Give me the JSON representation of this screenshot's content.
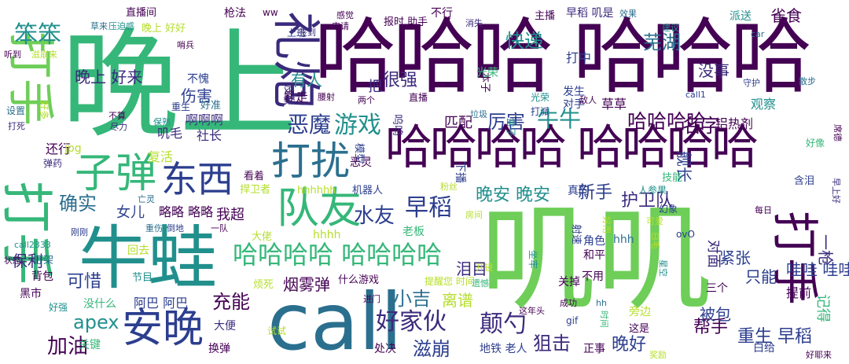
{
  "palette": {
    "background": "#ffffff",
    "dark_purple": "#440154",
    "indigo": "#3b2a7c",
    "navy": "#2c3e8e",
    "teal_blue": "#2b6f8e",
    "teal": "#21908d",
    "green": "#35b779",
    "bright_green": "#6ece58",
    "lime": "#b5de2b",
    "yellow": "#fde725"
  },
  "words": [
    {
      "text": "晚上",
      "color": "#35b779"
    },
    {
      "text": "哈哈哈 哈哈哈",
      "color": "#440154"
    },
    {
      "text": "叽叽",
      "color": "#6ece58"
    },
    {
      "text": "call",
      "color": "#2b6f8e"
    },
    {
      "text": "牛蛙",
      "color": "#21908d"
    },
    {
      "text": "打手",
      "color": "#6ece58"
    },
    {
      "text": "打手",
      "color": "#35b779"
    },
    {
      "text": "打手",
      "color": "#440154"
    },
    {
      "text": "哈哈哈哈 哈哈哈哈",
      "color": "#440154"
    },
    {
      "text": "礼炮",
      "color": "#3b2a7c"
    },
    {
      "text": "打扰",
      "color": "#2b6f8e"
    },
    {
      "text": "队友",
      "color": "#35b779"
    },
    {
      "text": "东西",
      "color": "#2c3e8e"
    },
    {
      "text": "子弹",
      "color": "#35b779"
    },
    {
      "text": "安晚",
      "color": "#2c3e8e"
    },
    {
      "text": "哈哈哈哈 哈哈哈哈",
      "color": "#35b779"
    },
    {
      "text": "笨笨",
      "color": "#21908d"
    },
    {
      "text": "游戏",
      "color": "#21908d"
    },
    {
      "text": "恶魔",
      "color": "#2c3e8e"
    },
    {
      "text": "厉害",
      "color": "#2c3e8e"
    },
    {
      "text": "牛牛",
      "color": "#21908d"
    },
    {
      "text": "哈哈哈哈",
      "color": "#440154"
    },
    {
      "text": "早稻",
      "color": "#2c3e8e"
    },
    {
      "text": "水友",
      "color": "#2c3e8e"
    },
    {
      "text": "晚安 晚安",
      "color": "#21908d"
    },
    {
      "text": "好家伙",
      "color": "#3b2a7c"
    },
    {
      "text": "颠勺",
      "color": "#3b2a7c"
    },
    {
      "text": "加油",
      "color": "#440154"
    },
    {
      "text": "确实",
      "color": "#2b6f8e"
    },
    {
      "text": "快递",
      "color": "#21908d"
    },
    {
      "text": "芜湖",
      "color": "#2b6f8e"
    },
    {
      "text": "名字",
      "color": "#440154"
    },
    {
      "text": "舰长",
      "color": "#2c3e8e"
    },
    {
      "text": "护卫队",
      "color": "#3b2a7c"
    },
    {
      "text": "新手",
      "color": "#2c3e8e"
    },
    {
      "text": "滋崩",
      "color": "#2c3e8e"
    },
    {
      "text": "狙击",
      "color": "#3b2a7c"
    },
    {
      "text": "晚好",
      "color": "#2c3e8e"
    },
    {
      "text": "帮手",
      "color": "#440154"
    },
    {
      "text": "重生 早稻",
      "color": "#2c3e8e"
    },
    {
      "text": "充能",
      "color": "#440154"
    },
    {
      "text": "小吉",
      "color": "#2b6f8e"
    },
    {
      "text": "泪目",
      "color": "#3b2a7c"
    },
    {
      "text": "离谱",
      "color": "#b5de2b"
    },
    {
      "text": "apex",
      "color": "#21908d"
    },
    {
      "text": "可惜",
      "color": "#2c3e8e"
    },
    {
      "text": "保利",
      "color": "#3b2a7c"
    },
    {
      "text": "晚上 好来",
      "color": "#3b2a7c"
    },
    {
      "text": "有人",
      "color": "#21908d"
    },
    {
      "text": "伤害",
      "color": "#2c3e8e"
    },
    {
      "text": "把",
      "color": "#3b2a7c"
    },
    {
      "text": "很强",
      "color": "#3b2a7c"
    },
    {
      "text": "打中",
      "color": "#2c3e8e"
    },
    {
      "text": "没事",
      "color": "#3b2a7c"
    },
    {
      "text": "雀食",
      "color": "#440154"
    },
    {
      "text": "哇哇 哇哇",
      "color": "#2c3e8e"
    },
    {
      "text": "只能",
      "color": "#2c3e8e"
    },
    {
      "text": "一枪",
      "color": "#3b2a7c"
    },
    {
      "text": "紧张",
      "color": "#2c3e8e"
    },
    {
      "text": "对面",
      "color": "#3b2a7c"
    },
    {
      "text": "被包",
      "color": "#2c3e8e"
    },
    {
      "text": "记得",
      "color": "#35b779"
    },
    {
      "text": "提前",
      "color": "#440154"
    },
    {
      "text": "烟雾弹",
      "color": "#440154"
    },
    {
      "text": "我超",
      "color": "#440154"
    },
    {
      "text": "女儿",
      "color": "#2c3e8e"
    },
    {
      "text": "略略 略略",
      "color": "#440154"
    },
    {
      "text": "阿巴 阿巴",
      "color": "#2c3e8e"
    },
    {
      "text": "社长",
      "color": "#3b2a7c"
    },
    {
      "text": "叽毛",
      "color": "#3b2a7c"
    },
    {
      "text": "复活",
      "color": "#b5de2b"
    },
    {
      "text": "还行",
      "color": "#440154"
    },
    {
      "text": "啊啊啊",
      "color": "#3b2a7c"
    },
    {
      "text": "暴走",
      "color": "#440154"
    },
    {
      "text": "不愧",
      "color": "#2c3e8e"
    },
    {
      "text": "观察",
      "color": "#21908d"
    },
    {
      "text": "铝热剂",
      "color": "#440154"
    },
    {
      "text": "草草",
      "color": "#440154"
    },
    {
      "text": "匹配",
      "color": "#440154"
    },
    {
      "text": "直播间",
      "color": "#440154"
    },
    {
      "text": "枪法",
      "color": "#440154"
    },
    {
      "text": "不行",
      "color": "#440154"
    },
    {
      "text": "早稻 叽是",
      "color": "#3b2a7c"
    },
    {
      "text": "派送",
      "color": "#21908d"
    },
    {
      "text": "主播",
      "color": "#440154"
    },
    {
      "text": "报时 助手",
      "color": "#440154"
    },
    {
      "text": "上班",
      "color": "#2c3e8e"
    },
    {
      "text": "ww",
      "color": "#440154"
    },
    {
      "text": "晚上 好好",
      "color": "#b5de2b"
    },
    {
      "text": "压迫感",
      "color": "#21908d"
    },
    {
      "text": "草来",
      "color": "#2b6f8e"
    },
    {
      "text": "签到",
      "color": "#3b2a7c"
    },
    {
      "text": "申请",
      "color": "#440154"
    },
    {
      "text": "消失",
      "color": "#3b2a7c"
    },
    {
      "text": "感觉",
      "color": "#440154"
    },
    {
      "text": "效果",
      "color": "#2b6f8e"
    },
    {
      "text": "建议",
      "color": "#21908d"
    },
    {
      "text": "car",
      "color": "#2b6f8e"
    },
    {
      "text": "守护",
      "color": "#2c3e8e"
    },
    {
      "text": "散步",
      "color": "#2b6f8e"
    },
    {
      "text": "发生",
      "color": "#2c3e8e"
    },
    {
      "text": "对手",
      "color": "#2c3e8e"
    },
    {
      "text": "光荣",
      "color": "#21908d"
    },
    {
      "text": "敌人",
      "color": "#440154"
    },
    {
      "text": "打派",
      "color": "#2c3e8e"
    },
    {
      "text": "直播",
      "color": "#440154"
    },
    {
      "text": "重生",
      "color": "#2c3e8e"
    },
    {
      "text": "好准",
      "color": "#2b6f8e"
    },
    {
      "text": "尽力",
      "color": "#3b2a7c"
    },
    {
      "text": "不算",
      "color": "#440154"
    },
    {
      "text": "保熟",
      "color": "#21908d"
    },
    {
      "text": "设置",
      "color": "#2b6f8e"
    },
    {
      "text": "好多",
      "color": "#b5de2b"
    },
    {
      "text": "听到",
      "color": "#440154"
    },
    {
      "text": "滋崩来",
      "color": "#b5de2b"
    },
    {
      "text": "打死",
      "color": "#3b2a7c"
    },
    {
      "text": "哨兵",
      "color": "#440154"
    },
    {
      "text": "jpg",
      "color": "#b5de2b"
    },
    {
      "text": "弹药",
      "color": "#3b2a7c"
    },
    {
      "text": "亡灵",
      "color": "#2b6f8e"
    },
    {
      "text": "捍卫者",
      "color": "#b5de2b"
    },
    {
      "text": "hhhhhh",
      "color": "#b5de2b"
    },
    {
      "text": "机器人",
      "color": "#2c3e8e"
    },
    {
      "text": "恶灵",
      "color": "#440154"
    },
    {
      "text": "看着",
      "color": "#440154"
    },
    {
      "text": "粉丝",
      "color": "#b5de2b"
    },
    {
      "text": "真的",
      "color": "#2c3e8e"
    },
    {
      "text": "人参果",
      "color": "#21908d"
    },
    {
      "text": "技能",
      "color": "#35b779"
    },
    {
      "text": "含泪",
      "color": "#2c3e8e"
    },
    {
      "text": "幻象",
      "color": "#2c3e8e"
    },
    {
      "text": "每日",
      "color": "#440154"
    },
    {
      "text": "早上好",
      "color": "#3b2a7c"
    },
    {
      "text": "好像",
      "color": "#35b779"
    },
    {
      "text": "席德",
      "color": "#440154"
    },
    {
      "text": "倒地",
      "color": "#2c3e8e"
    },
    {
      "text": "重伤",
      "color": "#2b6f8e"
    },
    {
      "text": "一队",
      "color": "#440154"
    },
    {
      "text": "刚刚",
      "color": "#2c3e8e"
    },
    {
      "text": "大佬",
      "color": "#b5de2b"
    },
    {
      "text": "hhhh",
      "color": "#b5de2b"
    },
    {
      "text": "老板",
      "color": "#35b779"
    },
    {
      "text": "call2333",
      "color": "#21908d"
    },
    {
      "text": "回去",
      "color": "#b5de2b"
    },
    {
      "text": "打架",
      "color": "#2b6f8e"
    },
    {
      "text": "状态",
      "color": "#440154"
    },
    {
      "text": "背包",
      "color": "#440154"
    },
    {
      "text": "节目",
      "color": "#21908d"
    },
    {
      "text": "烦死",
      "color": "#b5de2b"
    },
    {
      "text": "什么游戏",
      "color": "#440154"
    },
    {
      "text": "提醒您 时间",
      "color": "#b5de2b"
    },
    {
      "text": "进门",
      "color": "#440154"
    },
    {
      "text": "黑市",
      "color": "#440154"
    },
    {
      "text": "没什么",
      "color": "#35b779"
    },
    {
      "text": "好强",
      "color": "#21908d"
    },
    {
      "text": "大便",
      "color": "#3b2a7c"
    },
    {
      "text": "换弹",
      "color": "#440154"
    },
    {
      "text": "关键",
      "color": "#35b779"
    },
    {
      "text": "处决",
      "color": "#440154"
    },
    {
      "text": "地铁 老人",
      "color": "#2c3e8e"
    },
    {
      "text": "正事",
      "color": "#440154"
    },
    {
      "text": "这是",
      "color": "#440154"
    },
    {
      "text": "奖励",
      "color": "#b5de2b"
    },
    {
      "text": "白给",
      "color": "#2c3e8e"
    },
    {
      "text": "好耶来",
      "color": "#440154"
    },
    {
      "text": "旁边",
      "color": "#b5de2b"
    },
    {
      "text": "试试",
      "color": "#b5de2b"
    },
    {
      "text": "gif",
      "color": "#2c3e8e"
    },
    {
      "text": "hh",
      "color": "#2b6f8e"
    },
    {
      "text": "时间",
      "color": "#35b779"
    },
    {
      "text": "成功",
      "color": "#440154"
    },
    {
      "text": "这年头",
      "color": "#440154"
    },
    {
      "text": "遗憾",
      "color": "#35b779"
    },
    {
      "text": "开镜",
      "color": "#b5de2b"
    },
    {
      "text": "关掉",
      "color": "#440154"
    },
    {
      "text": "不用",
      "color": "#440154"
    },
    {
      "text": "三个",
      "color": "#440154"
    },
    {
      "text": "角色",
      "color": "#2c3e8e"
    },
    {
      "text": "和平",
      "color": "#440154"
    },
    {
      "text": "hhh",
      "color": "#2b6f8e"
    },
    {
      "text": "ovO",
      "color": "#2c3e8e"
    },
    {
      "text": "可爱",
      "color": "#b5de2b"
    },
    {
      "text": "白毛",
      "color": "#b5de2b"
    },
    {
      "text": "星空",
      "color": "#21908d"
    },
    {
      "text": "坐牢",
      "color": "#21908d"
    },
    {
      "text": "射速",
      "color": "#2c3e8e"
    },
    {
      "text": "房间",
      "color": "#b5de2b"
    },
    {
      "text": "好用",
      "color": "#b5de2b"
    },
    {
      "text": "call1",
      "color": "#2c3e8e"
    },
    {
      "text": "本子",
      "color": "#440154"
    },
    {
      "text": "盒子",
      "color": "#21908d"
    },
    {
      "text": "垃圾",
      "color": "#2b6f8e"
    },
    {
      "text": "两个",
      "color": "#440154"
    },
    {
      "text": "腰射",
      "color": "#440154"
    },
    {
      "text": "皮肤",
      "color": "#3b2a7c"
    },
    {
      "text": "呜呜",
      "color": "#3b2a7c"
    },
    {
      "text": "下播",
      "color": "#2c3e8e"
    },
    {
      "text": "光荣",
      "color": "#35b779"
    },
    {
      "text": "模型",
      "color": "#2c3e8e"
    }
  ]
}
